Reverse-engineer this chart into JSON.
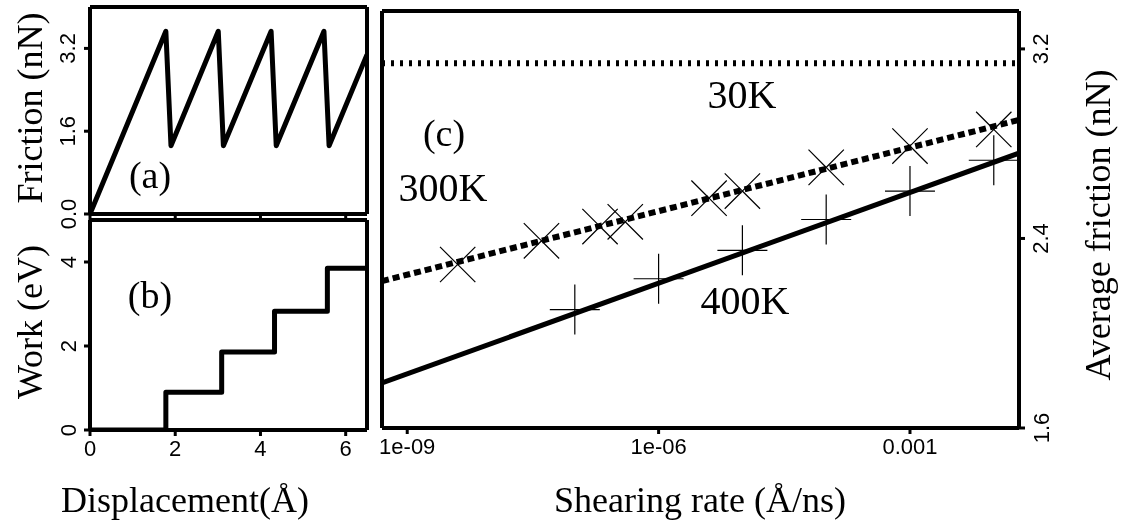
{
  "chart_data": [
    {
      "type": "line",
      "ylabel": "Friction (nN)",
      "annotations": [
        "(a)"
      ],
      "x": [
        0,
        1.78,
        1.9,
        3.01,
        3.13,
        4.25,
        4.37,
        5.49,
        5.61,
        6.5
      ],
      "values": [
        0,
        3.53,
        1.32,
        3.53,
        1.32,
        3.53,
        1.32,
        3.53,
        1.32,
        3.08
      ],
      "color": "#000000",
      "xlim": [
        0,
        6.5
      ],
      "ylim": [
        0,
        4
      ],
      "xticks": [
        0,
        2,
        4,
        6
      ],
      "yticks": [
        {
          "value": 0,
          "label": "0.0"
        },
        1.6,
        3.2
      ],
      "tick_labels": "y"
    },
    {
      "type": "step",
      "xlabel": "Displacement(Å)",
      "ylabel": "Work (eV)",
      "annotations": [
        "(b)"
      ],
      "x": [
        0,
        1.78,
        3.09,
        4.33,
        5.57,
        6.5
      ],
      "values": [
        0,
        0.9,
        1.86,
        2.83,
        3.85,
        3.85
      ],
      "color": "#000000",
      "xlim": [
        0,
        6.5
      ],
      "ylim": [
        0,
        5
      ],
      "xticks": [
        0,
        2,
        4,
        6
      ],
      "yticks": [
        0,
        2,
        4
      ]
    },
    {
      "type": "line",
      "xlabel": "Shearing rate (Å/ns)",
      "y2label": "Average friction (nN)",
      "annotations": [
        "(c)"
      ],
      "log": "x",
      "xlim": [
        5e-10,
        0.02
      ],
      "y2lim": [
        1.6,
        3.36
      ],
      "xticks": [
        {
          "value": 1e-09,
          "label": "1e-09"
        },
        {
          "value": 1e-06,
          "label": "1e-06"
        },
        0.001
      ],
      "y2ticks": [
        1.6,
        2.4,
        3.2
      ],
      "series": [
        {
          "name": "30K",
          "axis": "y2",
          "line_style": "dotted",
          "color": "#000000",
          "x": [
            5e-10,
            0.02
          ],
          "values": [
            3.14,
            3.14
          ]
        },
        {
          "name": "300K",
          "type": "scatter",
          "axis": "y2",
          "color": "#000000",
          "x": [
            4e-09,
            4e-08,
            2e-07,
            4e-07,
            4e-06,
            1e-05,
            0.0001,
            0.001,
            0.01
          ],
          "values": [
            2.29,
            2.39,
            2.45,
            2.47,
            2.57,
            2.6,
            2.7,
            2.79,
            2.86
          ]
        },
        {
          "axis": "y2",
          "line_style": "dashed",
          "color": "#000000",
          "x": [
            5e-10,
            0.02
          ],
          "values": [
            2.22,
            2.9
          ]
        },
        {
          "name": "400K",
          "type": "scatter",
          "axis": "y2",
          "marker": "cross",
          "color": "#000000",
          "x": [
            1e-07,
            1e-06,
            1e-05,
            0.0001,
            0.001,
            0.01
          ],
          "values": [
            2.1,
            2.23,
            2.35,
            2.48,
            2.6,
            2.73
          ]
        },
        {
          "axis": "y2",
          "line_style": "solid",
          "color": "#000000",
          "x": [
            5e-10,
            0.02
          ],
          "values": [
            1.79,
            2.76
          ]
        }
      ]
    }
  ]
}
